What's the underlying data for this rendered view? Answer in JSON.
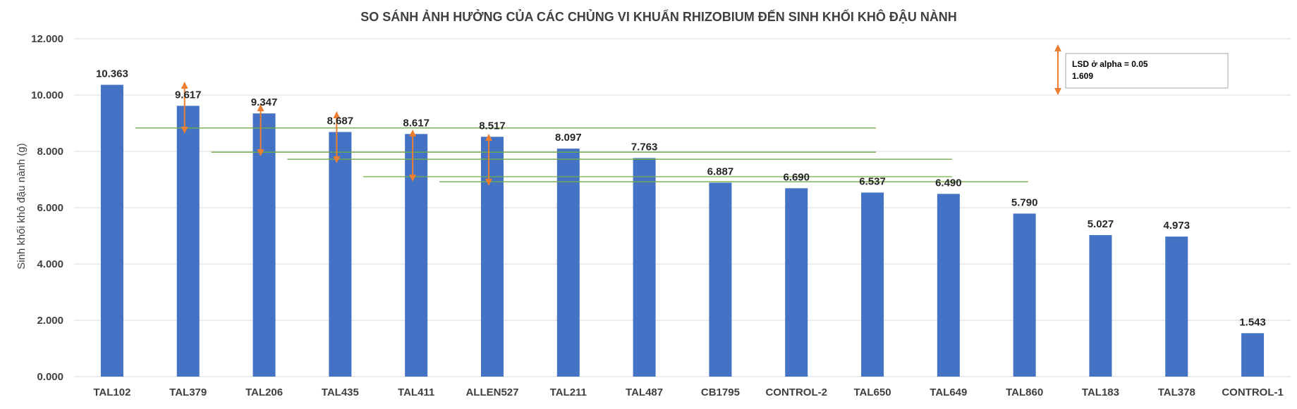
{
  "chart_data": {
    "type": "bar",
    "title": "SO SÁNH ẢNH HƯỞNG CỦA CÁC CHỦNG VI KHUẨN RHIZOBIUM ĐẾN SINH KHỐI KHÔ ĐẬU NÀNH",
    "ylabel": "Sinh khối khô đậu nành (g)",
    "xlabel": "",
    "ylim": [
      0,
      12
    ],
    "yticks": [
      0,
      2,
      4,
      6,
      8,
      10,
      12
    ],
    "ytick_labels": [
      "0.000",
      "2.000",
      "4.000",
      "6.000",
      "8.000",
      "10.000",
      "12.000"
    ],
    "grid": true,
    "bar_color": "#4472C4",
    "categories": [
      "TAL102",
      "TAL379",
      "TAL206",
      "TAL435",
      "TAL411",
      "ALLEN527",
      "TAL211",
      "TAL487",
      "CB1795",
      "CONTROL-2",
      "TAL650",
      "TAL649",
      "TAL860",
      "TAL183",
      "TAL378",
      "CONTROL-1"
    ],
    "values": [
      10.363,
      9.617,
      9.347,
      8.687,
      8.617,
      8.517,
      8.097,
      7.763,
      6.887,
      6.69,
      6.537,
      6.49,
      5.79,
      5.027,
      4.973,
      1.543
    ],
    "data_labels": [
      "10.363",
      "9.617",
      "9.347",
      "8.687",
      "8.617",
      "8.517",
      "8.097",
      "7.763",
      "6.887",
      "6.690",
      "6.537",
      "6.490",
      "5.790",
      "5.027",
      "4.973",
      "1.543"
    ],
    "lsd": {
      "label": "LSD ở alpha = 0.05",
      "value_label": "1.609",
      "value": 1.609,
      "arrow_color": "#ED7D31",
      "line_color": "#70AD47",
      "arrows": [
        {
          "category": "TAL379",
          "top": 10.35,
          "bottom": 8.75
        },
        {
          "category": "TAL206",
          "top": 9.55,
          "bottom": 7.95
        },
        {
          "category": "TAL435",
          "top": 9.3,
          "bottom": 7.7
        },
        {
          "category": "TAL411",
          "top": 8.65,
          "bottom": 7.05
        },
        {
          "category": "ALLEN527",
          "top": 8.5,
          "bottom": 6.9
        }
      ],
      "threshold_lines": [
        {
          "from": "TAL379",
          "to": "TAL650",
          "y": 8.83
        },
        {
          "from": "TAL206",
          "to": "TAL650",
          "y": 7.97
        },
        {
          "from": "TAL435",
          "to": "TAL649",
          "y": 7.72
        },
        {
          "from": "TAL411",
          "to": "TAL649",
          "y": 7.1
        },
        {
          "from": "ALLEN527",
          "to": "TAL860",
          "y": 6.92
        }
      ]
    },
    "legend_placement": "top-right"
  }
}
